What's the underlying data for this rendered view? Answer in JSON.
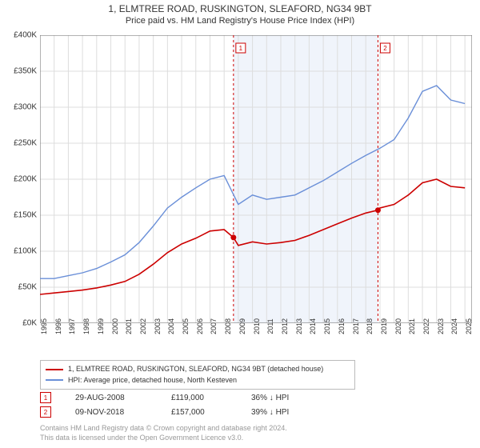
{
  "title_line1": "1, ELMTREE ROAD, RUSKINGTON, SLEAFORD, NG34 9BT",
  "title_line2": "Price paid vs. HM Land Registry's House Price Index (HPI)",
  "chart": {
    "type": "line",
    "background_color": "#ffffff",
    "grid_color": "#dddddd",
    "axis_color": "#666666",
    "highlight_band": {
      "x_start": 2008.66,
      "x_end": 2018.86,
      "fill": "#f0f4fb"
    },
    "xlim": [
      1995,
      2025.5
    ],
    "ylim": [
      0,
      400000
    ],
    "ytick_step": 50000,
    "yticks": [
      "£0K",
      "£50K",
      "£100K",
      "£150K",
      "£200K",
      "£250K",
      "£300K",
      "£350K",
      "£400K"
    ],
    "xticks": [
      "1995",
      "1996",
      "1997",
      "1998",
      "1999",
      "2000",
      "2001",
      "2002",
      "2003",
      "2004",
      "2005",
      "2006",
      "2007",
      "2008",
      "2009",
      "2010",
      "2011",
      "2012",
      "2013",
      "2014",
      "2015",
      "2016",
      "2017",
      "2018",
      "2019",
      "2020",
      "2021",
      "2022",
      "2023",
      "2024",
      "2025"
    ],
    "xtick_step": 1,
    "series": [
      {
        "key": "property",
        "label": "1, ELMTREE ROAD, RUSKINGTON, SLEAFORD, NG34 9BT (detached house)",
        "color": "#cc0000",
        "width": 1.6,
        "data": [
          [
            1995,
            40000
          ],
          [
            1996,
            42000
          ],
          [
            1997,
            44000
          ],
          [
            1998,
            46000
          ],
          [
            1999,
            49000
          ],
          [
            2000,
            53000
          ],
          [
            2001,
            58000
          ],
          [
            2002,
            68000
          ],
          [
            2003,
            82000
          ],
          [
            2004,
            98000
          ],
          [
            2005,
            110000
          ],
          [
            2006,
            118000
          ],
          [
            2007,
            128000
          ],
          [
            2008,
            130000
          ],
          [
            2008.66,
            119000
          ],
          [
            2009,
            108000
          ],
          [
            2010,
            113000
          ],
          [
            2011,
            110000
          ],
          [
            2012,
            112000
          ],
          [
            2013,
            115000
          ],
          [
            2014,
            122000
          ],
          [
            2015,
            130000
          ],
          [
            2016,
            138000
          ],
          [
            2017,
            146000
          ],
          [
            2018,
            153000
          ],
          [
            2018.86,
            157000
          ],
          [
            2019,
            160000
          ],
          [
            2020,
            165000
          ],
          [
            2021,
            178000
          ],
          [
            2022,
            195000
          ],
          [
            2023,
            200000
          ],
          [
            2024,
            190000
          ],
          [
            2025,
            188000
          ]
        ]
      },
      {
        "key": "hpi",
        "label": "HPI: Average price, detached house, North Kesteven",
        "color": "#6a8fd8",
        "width": 1.4,
        "data": [
          [
            1995,
            62000
          ],
          [
            1996,
            62000
          ],
          [
            1997,
            66000
          ],
          [
            1998,
            70000
          ],
          [
            1999,
            76000
          ],
          [
            2000,
            85000
          ],
          [
            2001,
            95000
          ],
          [
            2002,
            112000
          ],
          [
            2003,
            135000
          ],
          [
            2004,
            160000
          ],
          [
            2005,
            175000
          ],
          [
            2006,
            188000
          ],
          [
            2007,
            200000
          ],
          [
            2008,
            205000
          ],
          [
            2009,
            165000
          ],
          [
            2010,
            178000
          ],
          [
            2011,
            172000
          ],
          [
            2012,
            175000
          ],
          [
            2013,
            178000
          ],
          [
            2014,
            188000
          ],
          [
            2015,
            198000
          ],
          [
            2016,
            210000
          ],
          [
            2017,
            222000
          ],
          [
            2018,
            233000
          ],
          [
            2019,
            243000
          ],
          [
            2020,
            255000
          ],
          [
            2021,
            285000
          ],
          [
            2022,
            322000
          ],
          [
            2023,
            330000
          ],
          [
            2024,
            310000
          ],
          [
            2025,
            305000
          ]
        ]
      }
    ],
    "event_markers": [
      {
        "n": "1",
        "x": 2008.66,
        "y": 119000,
        "color": "#cc0000",
        "date": "29-AUG-2008",
        "price": "£119,000",
        "delta": "36% ↓ HPI"
      },
      {
        "n": "2",
        "x": 2018.86,
        "y": 157000,
        "color": "#cc0000",
        "date": "09-NOV-2018",
        "price": "£157,000",
        "delta": "39% ↓ HPI"
      }
    ],
    "event_label_y_top": 62,
    "marker_dot_radius": 3.5,
    "marker_box_color": "#cc0000",
    "event_dash": "3,3"
  },
  "footer_line1": "Contains HM Land Registry data © Crown copyright and database right 2024.",
  "footer_line2": "This data is licensed under the Open Government Licence v3.0."
}
